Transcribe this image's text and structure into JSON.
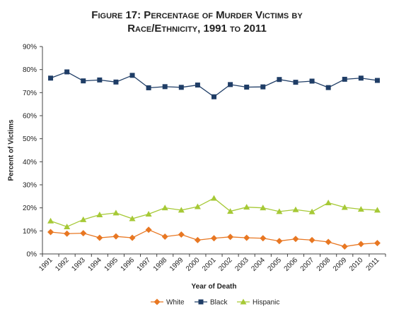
{
  "chart_data": {
    "type": "line",
    "title_line1": "Figure 17: Percentage of Murder Victims by",
    "title_line2": "Race/Ethnicity, 1991 to 2011",
    "xlabel": "Year of Death",
    "ylabel": "Percent of Victims",
    "x": [
      "1991",
      "1992",
      "1993",
      "1994",
      "1995",
      "1996",
      "1997",
      "1998",
      "1999",
      "2000",
      "2001",
      "2002",
      "2003",
      "2004",
      "2005",
      "2006",
      "2007",
      "2008",
      "2009",
      "2010",
      "2011"
    ],
    "ylim": [
      0,
      90
    ],
    "yticks": [
      0,
      10,
      20,
      30,
      40,
      50,
      60,
      70,
      80,
      90
    ],
    "ytick_labels": [
      "0%",
      "10%",
      "20%",
      "30%",
      "40%",
      "50%",
      "60%",
      "70%",
      "80%",
      "90%"
    ],
    "grid": false,
    "legend_position": "bottom",
    "series": [
      {
        "name": "White",
        "color": "#e87722",
        "marker": "diamond",
        "values": [
          9.5,
          8.8,
          9.0,
          7.0,
          7.6,
          7.0,
          10.5,
          7.5,
          8.4,
          6.0,
          6.8,
          7.4,
          7.0,
          6.8,
          5.6,
          6.5,
          6.0,
          5.2,
          3.2,
          4.3,
          4.7
        ]
      },
      {
        "name": "Black",
        "color": "#1f3d66",
        "marker": "square",
        "values": [
          76.3,
          79.0,
          75.1,
          75.5,
          74.6,
          77.5,
          72.1,
          72.6,
          72.3,
          73.3,
          68.2,
          73.5,
          72.4,
          72.5,
          75.7,
          74.5,
          75.0,
          72.2,
          75.8,
          76.3,
          75.3
        ]
      },
      {
        "name": "Hispanic",
        "color": "#a6c936",
        "marker": "triangle",
        "values": [
          14.3,
          11.8,
          14.9,
          17.0,
          17.8,
          15.3,
          17.3,
          20.0,
          19.0,
          20.5,
          24.2,
          18.5,
          20.3,
          20.0,
          18.4,
          19.2,
          18.3,
          22.2,
          20.2,
          19.4,
          19.0
        ]
      }
    ]
  }
}
